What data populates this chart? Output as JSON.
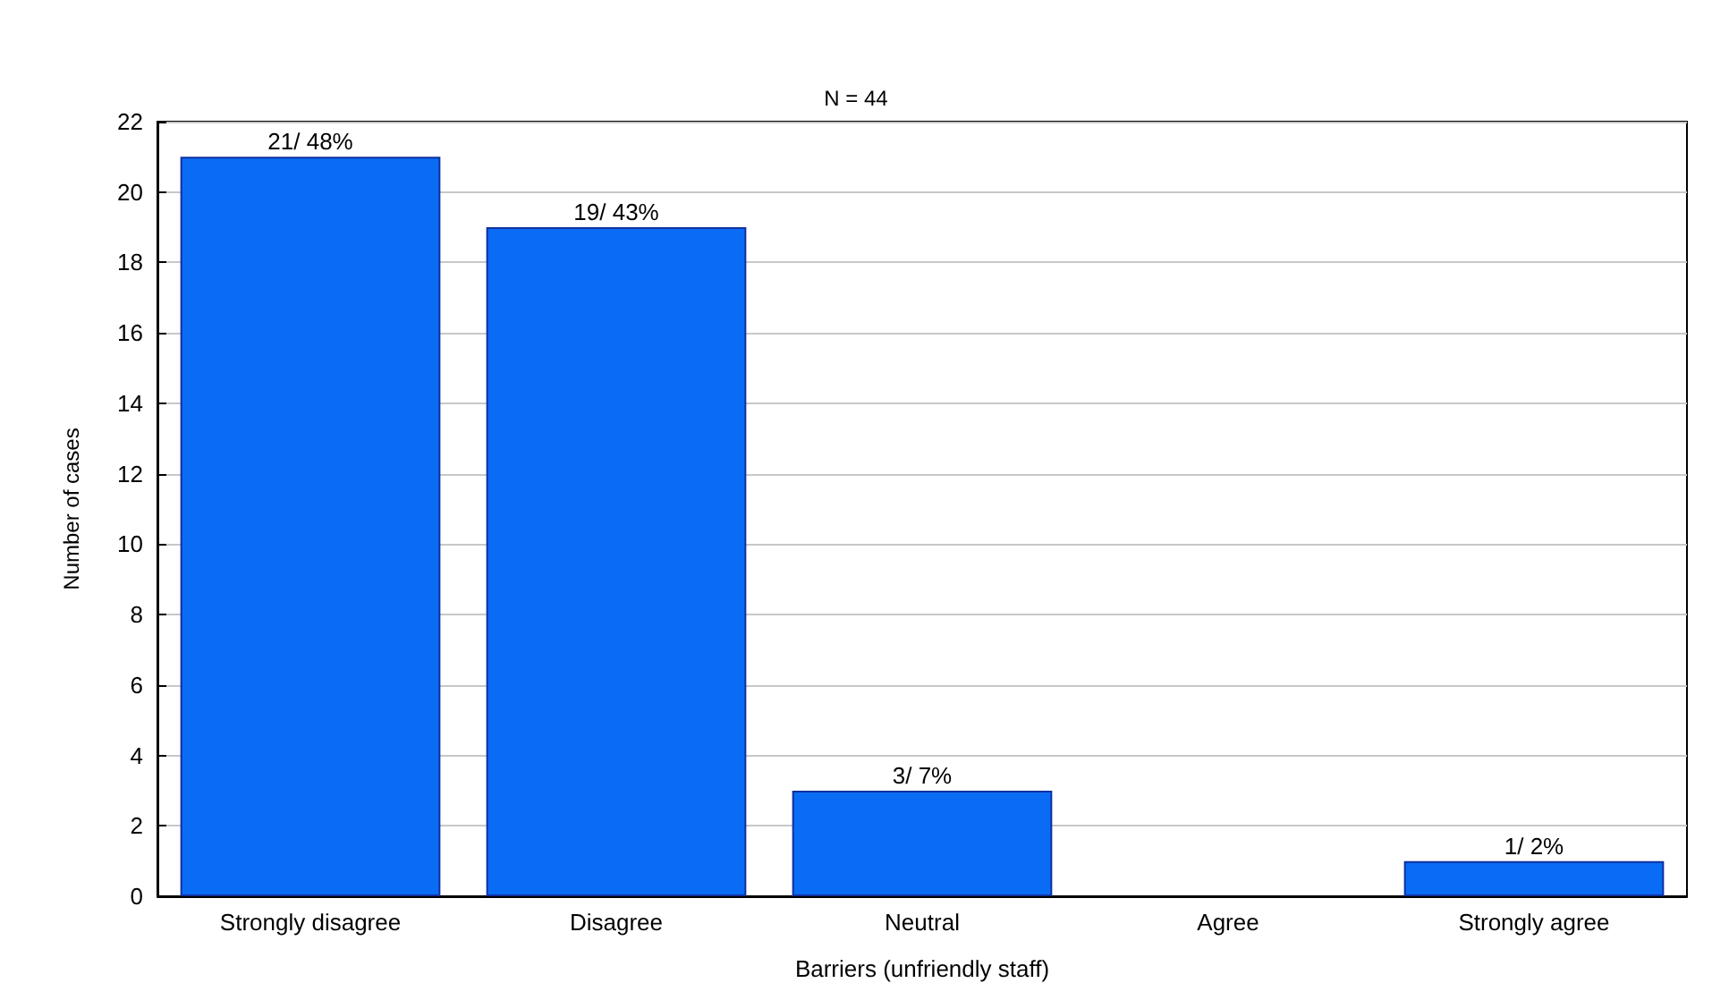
{
  "chart_data": {
    "type": "bar",
    "title": "N = 44",
    "xlabel": "Barriers (unfriendly staff)",
    "ylabel": "Number of cases",
    "categories": [
      "Strongly disagree",
      "Disagree",
      "Neutral",
      "Agree",
      "Strongly agree"
    ],
    "values": [
      21,
      19,
      3,
      0,
      1
    ],
    "value_labels": [
      "21/ 48%",
      "19/ 43%",
      "3/ 7%",
      null,
      "1/ 2%"
    ],
    "color": "#0a6cf5",
    "ylim": [
      0,
      22
    ],
    "yticks": [
      0,
      2,
      4,
      6,
      8,
      10,
      12,
      14,
      16,
      18,
      20,
      22
    ],
    "grid": "y"
  }
}
